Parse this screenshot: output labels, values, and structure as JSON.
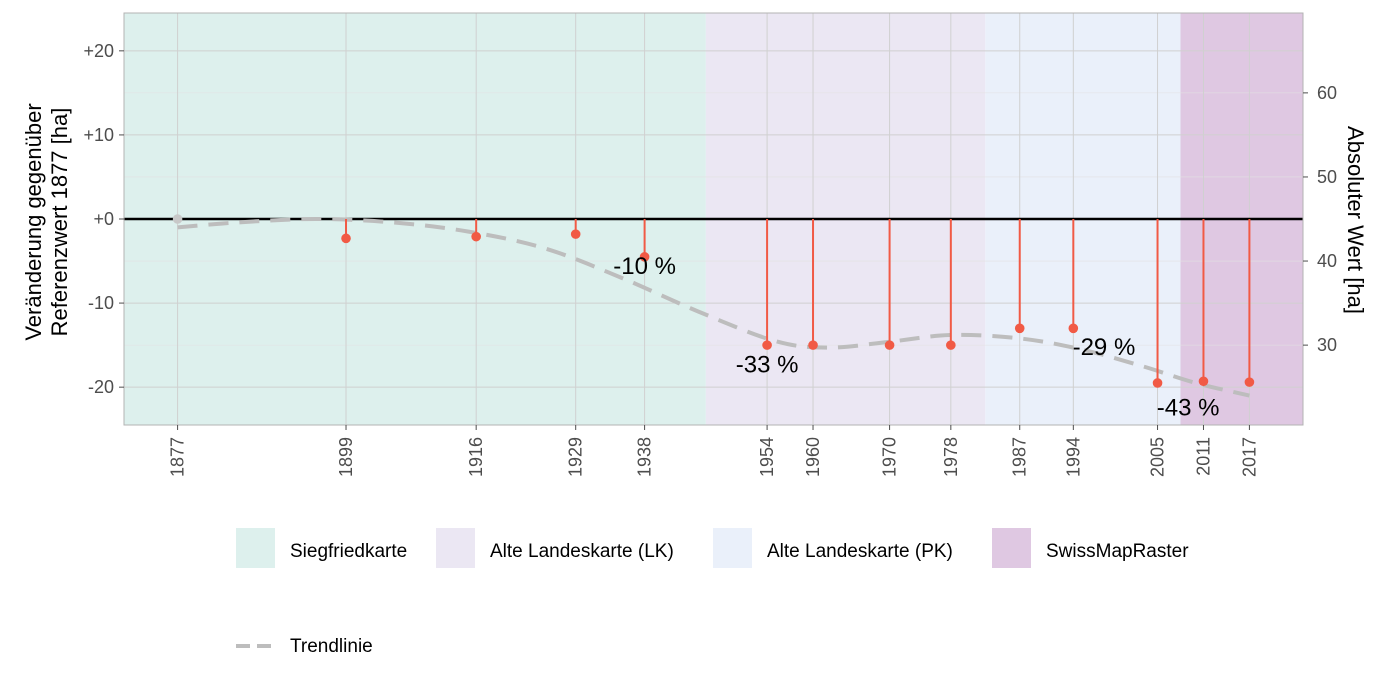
{
  "chart_data": {
    "type": "line",
    "x_ticks": [
      "1877",
      "1899",
      "1916",
      "1929",
      "1938",
      "1954",
      "1960",
      "1970",
      "1978",
      "1987",
      "1994",
      "2005",
      "2011",
      "2017"
    ],
    "xlim": [
      1870,
      2024
    ],
    "ylabel_left": "Veränderung gegenüber Referenzwert 1877 [ha]",
    "ylabel_left_lines": [
      "Veränderung gegenüber",
      "Referenzwert 1877 [ha]"
    ],
    "ylabel_right": "Absoluter Wert [ha]",
    "ylim": [
      -24.5,
      24.5
    ],
    "y_left_ticks": [
      20,
      10,
      0,
      -10,
      -20
    ],
    "y_left_tick_labels": [
      "+20",
      "+10",
      "+0",
      "-10",
      "-20"
    ],
    "y2_ticks": [
      30,
      40,
      50,
      60
    ],
    "y2_tick_labels": [
      "30",
      "40",
      "50",
      "60"
    ],
    "y2_offset": 45,
    "grid": true,
    "zero_line": true,
    "series": [
      {
        "style": "lollipop",
        "color": "#f15a45",
        "x": [
          1877,
          1899,
          1916,
          1929,
          1938,
          1954,
          1960,
          1970,
          1978,
          1987,
          1994,
          2005,
          2011,
          2017
        ],
        "values": [
          0,
          -2.3,
          -2.1,
          -1.8,
          -4.5,
          -15,
          -15,
          -15,
          -15,
          -13,
          -13,
          -19.5,
          -19.3,
          -19.4
        ]
      },
      {
        "name": "Trendlinie",
        "style": "dashed",
        "color": "#bdbdbd",
        "x": [
          1877,
          1885,
          1895,
          1905,
          1915,
          1925,
          1935,
          1945,
          1955,
          1962,
          1970,
          1978,
          1987,
          1995,
          2003,
          2010,
          2017
        ],
        "values": [
          -1,
          -0.4,
          0,
          -0.4,
          -1.5,
          -3.5,
          -7,
          -11,
          -14.5,
          -15.3,
          -14.6,
          -13.8,
          -14.2,
          -15.5,
          -17.5,
          -19.5,
          -21
        ]
      }
    ],
    "annotations": [
      {
        "text": "-10 %",
        "x": 1938,
        "y": -5.6
      },
      {
        "text": "-33 %",
        "x": 1954,
        "y": -17.3
      },
      {
        "text": "-29 %",
        "x": 1998,
        "y": -15.2
      },
      {
        "text": "-43 %",
        "x": 2009,
        "y": -22.4
      }
    ],
    "periods": [
      {
        "label": "Siegfriedkarte",
        "start": 1870,
        "end": 1946,
        "color": "#ddf0ed"
      },
      {
        "label": "Alte Landeskarte (LK)",
        "start": 1946,
        "end": 1982.5,
        "color": "#ebe7f3"
      },
      {
        "label": "Alte Landeskarte (PK)",
        "start": 1982.5,
        "end": 2008,
        "color": "#eaf0fa"
      },
      {
        "label": "SwissMapRaster",
        "start": 2008,
        "end": 2024,
        "color": "#dfc8e2"
      }
    ],
    "legend": {
      "placement": "bottom",
      "trend_label": "Trendlinie"
    }
  }
}
